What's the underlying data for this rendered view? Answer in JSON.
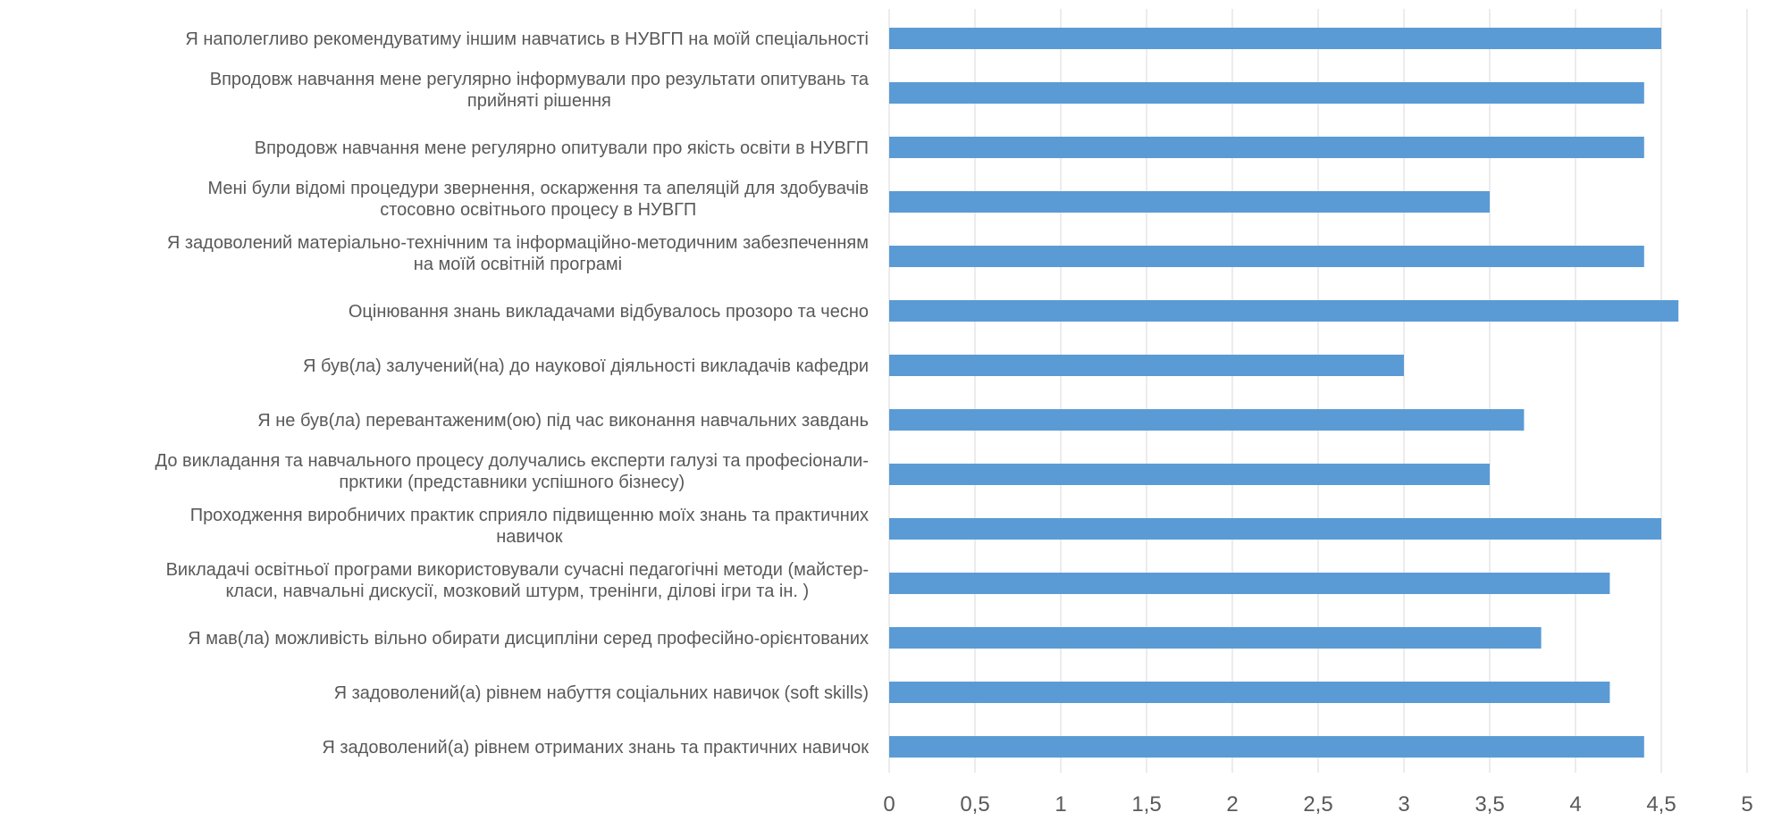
{
  "chart_data": {
    "type": "bar",
    "orientation": "horizontal",
    "categories": [
      [
        "Я наполегливо рекомендуватиму іншим навчатись в НУВГП на моїй спеціальності"
      ],
      [
        "Впродовж навчання мене регулярно інформували про результати опитувань та",
        "прийняті рішення"
      ],
      [
        "Впродовж навчання мене регулярно опитували про якість освіти в НУВГП"
      ],
      [
        "Мені були відомі процедури звернення, оскарження та апеляцій для здобувачів",
        "стосовно освітнього процесу в НУВГП"
      ],
      [
        "Я задоволений матеріально-технічним та інформаційно-методичним забезпеченням",
        "на моїй освітній програмі"
      ],
      [
        "Оцінювання знань викладачами відбувалось прозоро та чесно"
      ],
      [
        "Я був(ла) залучений(на) до наукової діяльності викладачів кафедри"
      ],
      [
        "Я не був(ла) перевантаженим(ою) під час виконання навчальних завдань"
      ],
      [
        "До викладання та навчального процесу долучались експерти галузі та професіонали-",
        "прктики (представники успішного бізнесу)"
      ],
      [
        "Проходження виробничих практик  сприяло підвищенню моїх знань та практичних",
        "навичок"
      ],
      [
        "Викладачі освітньої програми використовували сучасні педагогічні методи (майстер-",
        "класи, навчальні дискусії, мозковий штурм, тренінги, ділові ігри та ін. )"
      ],
      [
        "Я мав(ла) можливість вільно обирати дисципліни серед професійно-орієнтованих"
      ],
      [
        "Я задоволений(а) рівнем набуття соціальних навичок (soft skills)"
      ],
      [
        "Я задоволений(а) рівнем отриманих знань та практичних навичок"
      ]
    ],
    "values": [
      4.5,
      4.4,
      4.4,
      3.5,
      4.4,
      4.6,
      3.0,
      3.7,
      3.5,
      4.5,
      4.2,
      3.8,
      4.2,
      4.4
    ],
    "xlim": [
      0,
      5
    ],
    "xticks": [
      "0",
      "0,5",
      "1",
      "1,5",
      "2",
      "2,5",
      "3",
      "3,5",
      "4",
      "4,5",
      "5"
    ],
    "xtick_values": [
      0,
      0.5,
      1,
      1.5,
      2,
      2.5,
      3,
      3.5,
      4,
      4.5,
      5
    ],
    "grid": true,
    "bar_color": "#5b9bd5",
    "grid_color": "#d9d9d9",
    "text_color": "#595959"
  }
}
